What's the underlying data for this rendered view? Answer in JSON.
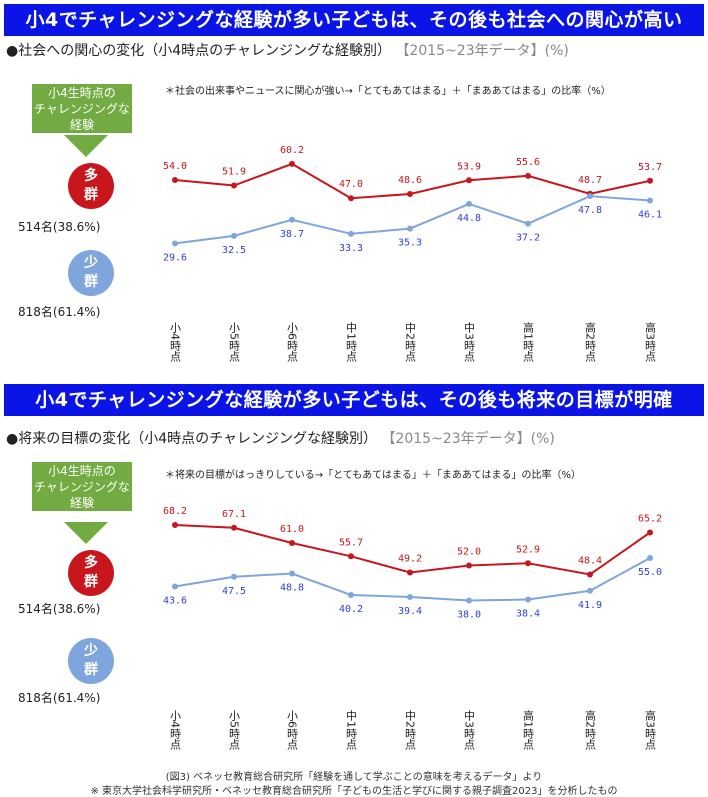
{
  "legend": {
    "box_line1": "小4生時点の",
    "box_line2": "チャレンジングな",
    "box_line3": "経験",
    "high_group": "多\n群",
    "low_group": "少\n群",
    "high_count": "514名(38.6%)",
    "low_count": "818名(61.4%)"
  },
  "colors": {
    "banner": "#0a14e6",
    "high": "#c8161d",
    "low": "#7fa6dc",
    "box": "#72ab42"
  },
  "chart_data": [
    {
      "type": "line",
      "banner": "小4でチャレンジングな経験が多い子どもは、その後も社会への関心が高い",
      "title": "●社会への関心の変化（小4時点のチャレンジングな経験別）",
      "title_suffix": "【2015~23年データ】(%)",
      "note": "＊社会の出来事やニュースに関心が強い→「とてもあてはまる」＋「まああてはまる」の比率（%）",
      "categories": [
        "小4時点",
        "小5時点",
        "小6時点",
        "中1時点",
        "中2時点",
        "中3時点",
        "高1時点",
        "高2時点",
        "高3時点"
      ],
      "series": [
        {
          "name": "多群",
          "values": [
            54.0,
            51.9,
            60.2,
            47.0,
            48.6,
            53.9,
            55.6,
            48.7,
            53.7
          ]
        },
        {
          "name": "少群",
          "values": [
            29.6,
            32.5,
            38.7,
            33.3,
            35.3,
            44.8,
            37.2,
            47.8,
            46.1
          ]
        }
      ]
    },
    {
      "type": "line",
      "banner": "小4でチャレンジングな経験が多い子どもは、その後も将来の目標が明確",
      "title": "●将来の目標の変化（小4時点のチャレンジングな経験別）",
      "title_suffix": "【2015~23年データ】(%)",
      "note": "＊将来の目標がはっきりしている→「とてもあてはまる」＋「まああてはまる」の比率（%）",
      "categories": [
        "小4時点",
        "小5時点",
        "小6時点",
        "中1時点",
        "中2時点",
        "中3時点",
        "高1時点",
        "高2時点",
        "高3時点"
      ],
      "series": [
        {
          "name": "多群",
          "values": [
            68.2,
            67.1,
            61.0,
            55.7,
            49.2,
            52.0,
            52.9,
            48.4,
            65.2
          ]
        },
        {
          "name": "少群",
          "values": [
            43.6,
            47.5,
            48.8,
            40.2,
            39.4,
            38.0,
            38.4,
            41.9,
            55.0
          ]
        }
      ]
    }
  ],
  "footer": {
    "line1": "(図3) ベネッセ教育総合研究所「経験を通して学ぶことの意味を考えるデータ」より",
    "line2": "※ 東京大学社会科学研究所・ベネッセ教育総合研究所「子どもの生活と学びに関する親子調査2023」を分析したもの"
  }
}
